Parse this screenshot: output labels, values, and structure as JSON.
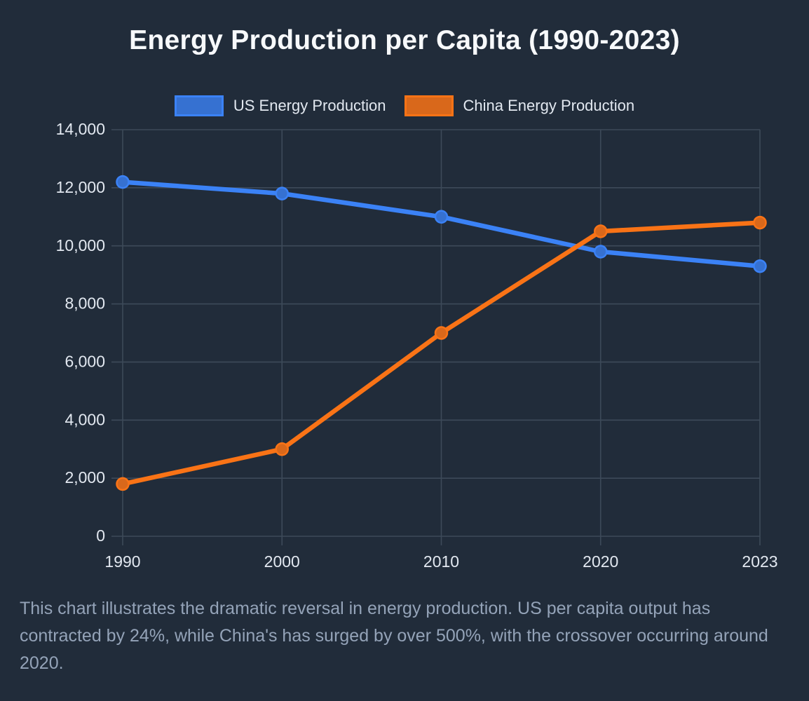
{
  "header": {
    "title": "Energy Production per Capita (1990-2023)"
  },
  "theme": {
    "background": "#212c3a",
    "title_color": "#f7f9fb",
    "tick_label_color": "#e2e8f0",
    "grid_color": "#3d4a59",
    "caption_color": "#94a3b8",
    "us_color": "#3b82f6",
    "china_color": "#f97316"
  },
  "caption": {
    "text": "This chart illustrates the dramatic reversal in energy production. US per capita output has contracted by 24%, while China's has surged by over 500%, with the crossover occurring around 2020."
  },
  "chart_data": {
    "type": "line",
    "title": "Energy Production per Capita (1990-2023)",
    "categories": [
      "1990",
      "2000",
      "2010",
      "2020",
      "2023"
    ],
    "series": [
      {
        "id": "us",
        "name": "US Energy Production",
        "line_color": "#3b82f6",
        "point_fill_color": "#3671d1",
        "values": [
          12200,
          11800,
          11000,
          9800,
          9300
        ]
      },
      {
        "id": "china",
        "name": "China Energy Production",
        "line_color": "#f97316",
        "point_fill_color": "#d9681b",
        "values": [
          1800,
          3000,
          7000,
          10500,
          10800
        ]
      }
    ],
    "xlabel": "",
    "ylabel": "",
    "ylim": [
      0,
      14000
    ],
    "ytick_values": [
      0,
      2000,
      4000,
      6000,
      8000,
      10000,
      12000,
      14000
    ],
    "ytick_labels": [
      "0",
      "2,000",
      "4,000",
      "6,000",
      "8,000",
      "10,000",
      "12,000",
      "14,000"
    ],
    "grid": true,
    "legend_position": "top"
  }
}
